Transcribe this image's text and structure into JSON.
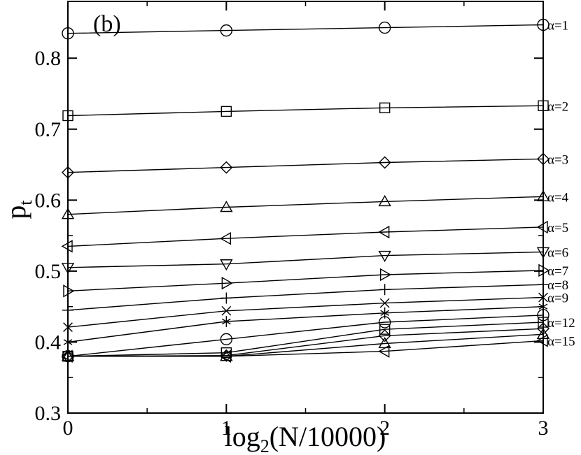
{
  "chart_data": {
    "type": "line",
    "panel_label": "(b)",
    "xlabel_main": "log",
    "xlabel_sub": "2",
    "xlabel_rest": "(N/10000)",
    "ylabel_main": "p",
    "ylabel_sub": "t",
    "xlim": [
      0,
      3
    ],
    "ylim": [
      0.3,
      0.88
    ],
    "x_ticks": [
      0,
      1,
      2,
      3
    ],
    "y_ticks": [
      0.3,
      0.4,
      0.5,
      0.6,
      0.7,
      0.8
    ],
    "x_tick_labels": [
      "0",
      "1",
      "2",
      "3"
    ],
    "y_tick_labels": [
      "0.3",
      "0.4",
      "0.5",
      "0.6",
      "0.7",
      "0.8"
    ],
    "grid": false,
    "legend": "inline labels at right edge",
    "x": [
      0,
      1,
      2,
      3
    ],
    "series": [
      {
        "name": "α=1",
        "marker": "circle",
        "values": [
          0.835,
          0.839,
          0.843,
          0.847
        ]
      },
      {
        "name": "α=2",
        "marker": "square",
        "values": [
          0.719,
          0.725,
          0.73,
          0.733
        ]
      },
      {
        "name": "α=3",
        "marker": "diamond",
        "values": [
          0.639,
          0.646,
          0.653,
          0.658
        ]
      },
      {
        "name": "α=4",
        "marker": "triangle-up",
        "values": [
          0.58,
          0.59,
          0.598,
          0.605
        ]
      },
      {
        "name": "α=5",
        "marker": "triangle-left",
        "values": [
          0.535,
          0.546,
          0.555,
          0.562
        ]
      },
      {
        "name": "α=6",
        "marker": "triangle-down",
        "values": [
          0.505,
          0.51,
          0.522,
          0.527
        ]
      },
      {
        "name": "α=7",
        "marker": "triangle-right",
        "values": [
          0.472,
          0.483,
          0.495,
          0.501
        ]
      },
      {
        "name": "α=8",
        "marker": "plus",
        "values": [
          0.445,
          0.462,
          0.474,
          0.481
        ]
      },
      {
        "name": "α=9",
        "marker": "x",
        "values": [
          0.421,
          0.444,
          0.455,
          0.463
        ]
      },
      {
        "name": "",
        "marker": "asterisk",
        "values": [
          0.4,
          0.429,
          0.441,
          0.45
        ]
      },
      {
        "name": "",
        "marker": "circle",
        "values": [
          0.38,
          0.404,
          0.428,
          0.438
        ]
      },
      {
        "name": "α=12",
        "marker": "square",
        "values": [
          0.38,
          0.385,
          0.418,
          0.428
        ]
      },
      {
        "name": "",
        "marker": "diamond",
        "values": [
          0.38,
          0.381,
          0.409,
          0.419
        ]
      },
      {
        "name": "",
        "marker": "triangle-up",
        "values": [
          0.38,
          0.38,
          0.398,
          0.411
        ]
      },
      {
        "name": "α=15",
        "marker": "triangle-left",
        "values": [
          0.38,
          0.38,
          0.387,
          0.402
        ]
      }
    ]
  }
}
